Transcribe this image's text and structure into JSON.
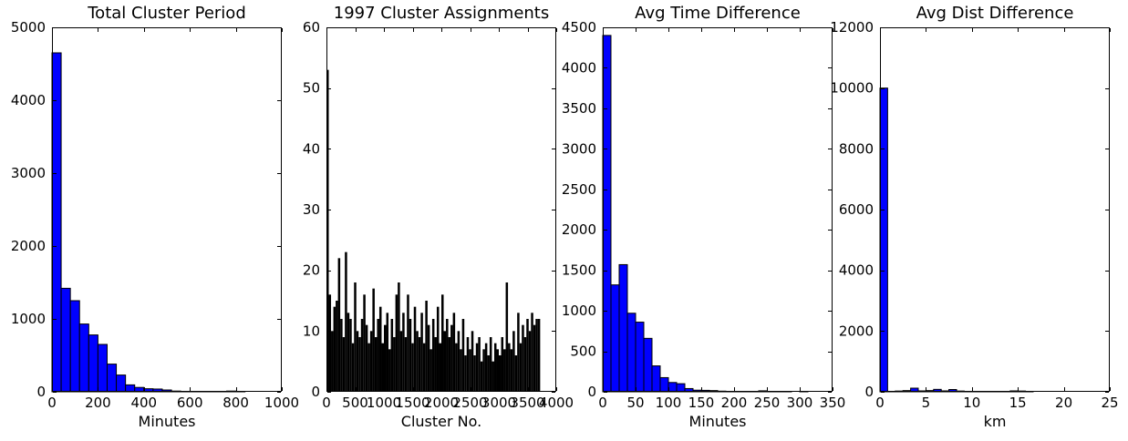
{
  "figure": {
    "background": "#ffffff",
    "text_color": "#000000",
    "spine_color": "#000000"
  },
  "chart_data": [
    {
      "type": "bar",
      "title": "Total Cluster Period",
      "xlabel": "Minutes",
      "xlim": [
        0,
        1000
      ],
      "ylim": [
        0,
        5000
      ],
      "xticks": [
        0,
        200,
        400,
        600,
        800,
        1000
      ],
      "yticks": [
        0,
        1000,
        2000,
        3000,
        4000,
        5000
      ],
      "grid": false,
      "legend": null,
      "bin_start": 0,
      "bin_width": 40,
      "values": [
        4650,
        1420,
        1250,
        930,
        780,
        650,
        380,
        230,
        95,
        60,
        42,
        38,
        25,
        10,
        3,
        2,
        1,
        1,
        2,
        10,
        1,
        0,
        0,
        0,
        0
      ],
      "bar_color": "#0000ff",
      "bar_edge_color": "#000000"
    },
    {
      "type": "bar",
      "title": "1997 Cluster Assignments",
      "xlabel": "Cluster No.",
      "xlim": [
        0,
        4000
      ],
      "ylim": [
        0,
        60
      ],
      "xticks": [
        0,
        500,
        1000,
        1500,
        2000,
        2500,
        3000,
        3500,
        4000
      ],
      "yticks": [
        0,
        10,
        20,
        30,
        40,
        50,
        60
      ],
      "grid": false,
      "legend": null,
      "bin_start": 0,
      "bin_width": 40,
      "values": [
        53,
        16,
        10,
        14,
        15,
        22,
        12,
        9,
        23,
        13,
        12,
        8,
        18,
        10,
        9,
        12,
        16,
        11,
        8,
        10,
        17,
        9,
        12,
        14,
        8,
        11,
        13,
        7,
        12,
        9,
        16,
        18,
        10,
        13,
        9,
        16,
        12,
        8,
        14,
        10,
        9,
        13,
        8,
        15,
        11,
        7,
        12,
        9,
        14,
        8,
        16,
        10,
        12,
        9,
        11,
        13,
        8,
        10,
        7,
        12,
        6,
        9,
        7,
        10,
        6,
        8,
        9,
        5,
        7,
        8,
        6,
        9,
        5,
        8,
        7,
        6,
        9,
        7,
        18,
        8,
        7,
        10,
        6,
        13,
        8,
        11,
        9,
        12,
        10,
        13,
        11,
        12,
        12,
        0,
        0,
        0,
        0,
        0,
        0,
        0
      ],
      "bar_color": "#000000",
      "bar_edge_color": "none"
    },
    {
      "type": "bar",
      "title": "Avg Time Difference",
      "xlabel": "Minutes",
      "xlim": [
        0,
        350
      ],
      "ylim": [
        0,
        4500
      ],
      "xticks": [
        0,
        50,
        100,
        150,
        200,
        250,
        300,
        350
      ],
      "yticks": [
        0,
        500,
        1000,
        1500,
        2000,
        2500,
        3000,
        3500,
        4000,
        4500
      ],
      "grid": false,
      "legend": null,
      "bin_start": 0,
      "bin_width": 12.5,
      "values": [
        4400,
        1320,
        1570,
        970,
        860,
        660,
        320,
        175,
        115,
        100,
        40,
        20,
        18,
        15,
        8,
        5,
        5,
        4,
        3,
        12,
        2,
        1,
        1,
        0,
        1,
        0,
        0,
        0
      ],
      "bar_color": "#0000ff",
      "bar_edge_color": "#000000"
    },
    {
      "type": "bar",
      "title": "Avg Dist Difference",
      "xlabel": "km",
      "xlim": [
        0,
        25
      ],
      "ylim": [
        0,
        12000
      ],
      "xticks": [
        0,
        5,
        10,
        15,
        20,
        25
      ],
      "yticks": [
        0,
        2000,
        4000,
        6000,
        8000,
        10000,
        12000
      ],
      "grid": false,
      "legend": null,
      "bin_start": 0,
      "bin_width": 0.8333,
      "values": [
        10000,
        15,
        25,
        40,
        120,
        30,
        40,
        80,
        30,
        75,
        25,
        15,
        15,
        15,
        12,
        15,
        12,
        30,
        25,
        15,
        0,
        0,
        0,
        0,
        0,
        0,
        0,
        0,
        0,
        0
      ],
      "bar_color": "#0000ff",
      "bar_edge_color": "#000000"
    }
  ]
}
